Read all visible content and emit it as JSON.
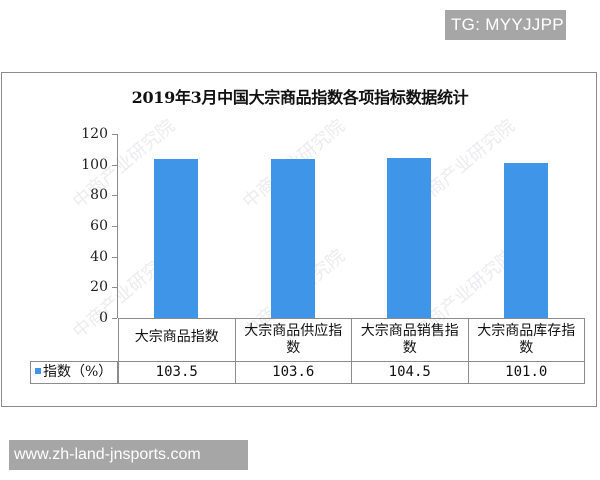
{
  "badge_top": "TG: MYYJJPP",
  "badge_bottom": "www.zh-land-jnsports.com",
  "watermark": "中商产业研究院",
  "chart_data": {
    "type": "bar",
    "title": "2019年3月中国大宗商品指数各项指标数据统计",
    "categories": [
      "大宗商品指数",
      "大宗商品供应指数",
      "大宗商品销售指数",
      "大宗商品库存指数"
    ],
    "category_lines": [
      [
        "大宗商品指数"
      ],
      [
        "大宗商品供应指",
        "数"
      ],
      [
        "大宗商品销售指",
        "数"
      ],
      [
        "大宗商品库存指",
        "数"
      ]
    ],
    "series": [
      {
        "name": "指数（%）",
        "values": [
          103.5,
          103.6,
          104.5,
          101.0
        ],
        "value_labels": [
          "103.5",
          "103.6",
          "104.5",
          "101.0"
        ],
        "color": "#3f96e8"
      }
    ],
    "xlabel": "",
    "ylabel": "",
    "ylim": [
      0,
      120
    ],
    "yticks": [
      "0",
      "20",
      "40",
      "60",
      "80",
      "100",
      "120"
    ],
    "grid": false,
    "legend_position": "data-table-left"
  }
}
